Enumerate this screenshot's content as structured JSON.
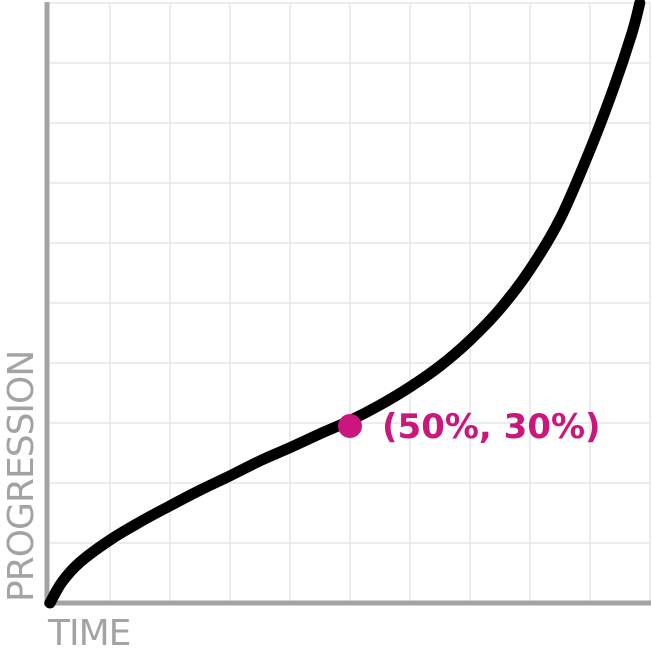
{
  "chart_data": {
    "type": "line",
    "xlabel": "TIME",
    "ylabel": "PROGRESSION",
    "xlim": [
      0,
      100
    ],
    "ylim": [
      0,
      100
    ],
    "grid": true,
    "series": [
      {
        "color": "#000000",
        "points": [
          [
            0,
            0
          ],
          [
            2,
            3.5
          ],
          [
            5,
            6.8
          ],
          [
            10,
            10.5
          ],
          [
            15,
            13.5
          ],
          [
            20,
            16.2
          ],
          [
            25,
            18.8
          ],
          [
            30,
            21.2
          ],
          [
            35,
            23.7
          ],
          [
            40,
            25.9
          ],
          [
            45,
            28.2
          ],
          [
            50,
            30.4
          ],
          [
            55,
            33
          ],
          [
            60,
            36
          ],
          [
            65,
            39.5
          ],
          [
            70,
            43.8
          ],
          [
            75,
            49
          ],
          [
            80,
            55.6
          ],
          [
            85,
            64
          ],
          [
            90,
            75.5
          ],
          [
            94,
            86
          ],
          [
            97,
            95
          ],
          [
            98.3,
            100
          ]
        ]
      }
    ],
    "highlight": {
      "x": 50,
      "y": 30,
      "label": "(50%, 30%)",
      "color": "#c9177e"
    },
    "colors": {
      "axis": "#a3a3a3",
      "grid": "#e6e6e6"
    }
  }
}
